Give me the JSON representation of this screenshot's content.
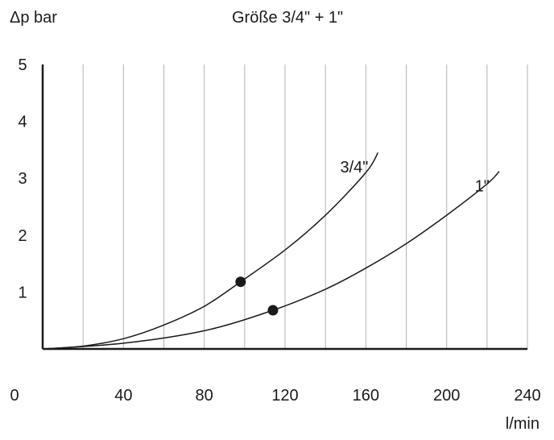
{
  "chart_data": {
    "type": "line",
    "title": "Größe 3/4\" + 1\"",
    "ylabel": "Δp bar",
    "xlabel": "l/min",
    "xlim": [
      0,
      240
    ],
    "ylim": [
      0,
      5
    ],
    "x_ticks": [
      "0",
      "40",
      "80",
      "120",
      "160",
      "200",
      "240"
    ],
    "y_ticks": [
      "1",
      "2",
      "3",
      "4",
      "5"
    ],
    "grid": true,
    "grid_x_step": 20,
    "series": [
      {
        "name": "3/4\"",
        "x": [
          0,
          20,
          40,
          60,
          80,
          98,
          120,
          140,
          160,
          166
        ],
        "y": [
          0,
          0.05,
          0.18,
          0.42,
          0.75,
          1.18,
          1.74,
          2.35,
          3.1,
          3.45
        ],
        "marker": {
          "x": 98,
          "y": 1.18
        }
      },
      {
        "name": "1\"",
        "x": [
          0,
          40,
          80,
          114,
          140,
          160,
          180,
          200,
          220,
          226
        ],
        "y": [
          0,
          0.1,
          0.32,
          0.68,
          1.05,
          1.42,
          1.85,
          2.35,
          2.9,
          3.12
        ],
        "marker": {
          "x": 114,
          "y": 0.68
        }
      }
    ],
    "colors": {
      "line": "#1a1a1a",
      "grid": "#b3b3b3",
      "background": "#ffffff"
    }
  }
}
